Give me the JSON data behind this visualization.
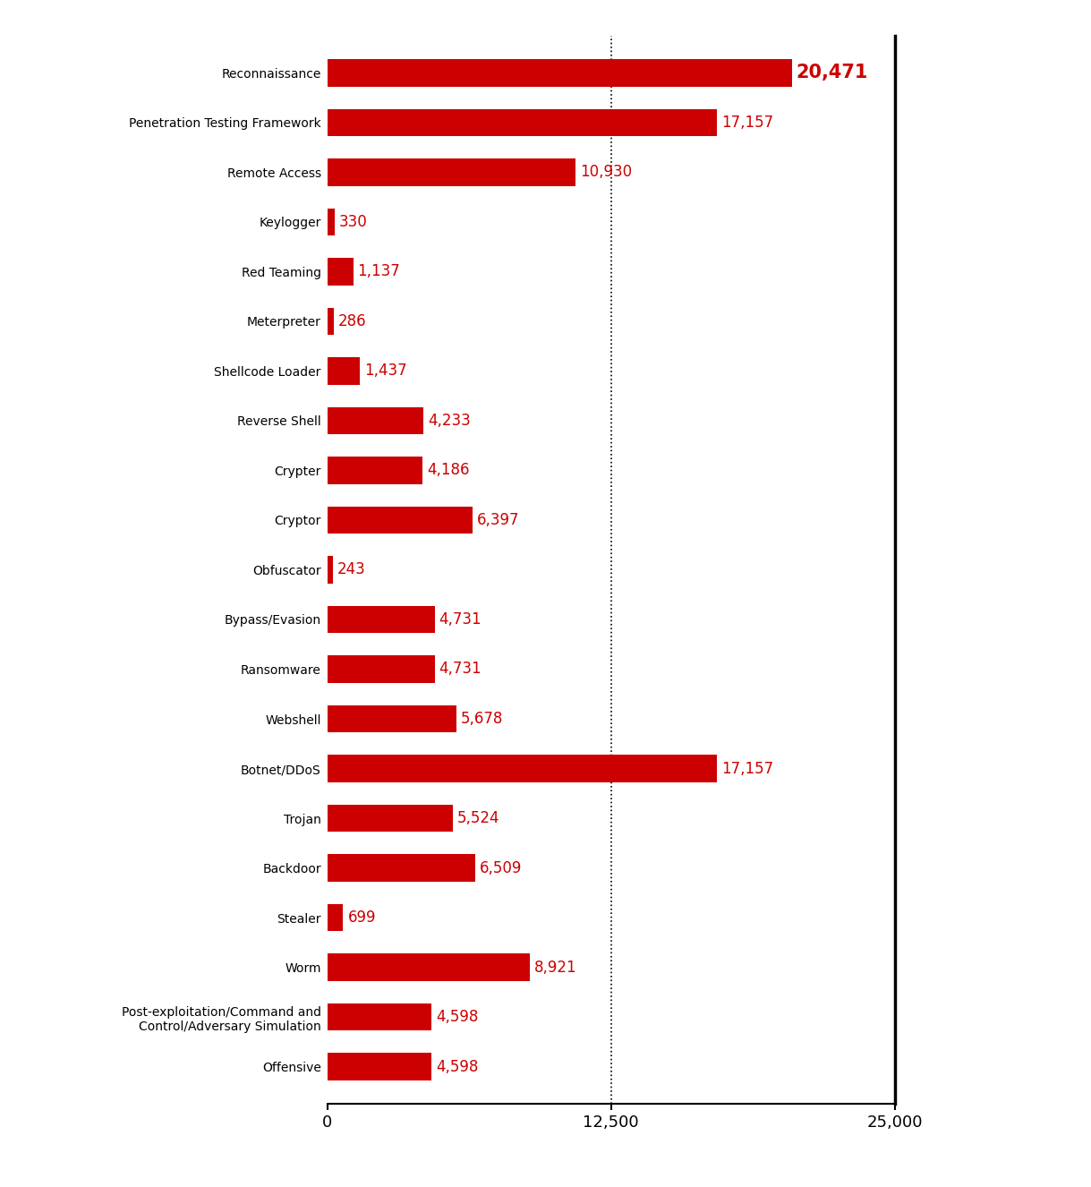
{
  "categories": [
    "Reconnaissance",
    "Penetration Testing Framework",
    "Remote Access",
    "Keylogger",
    "Red Teaming",
    "Meterpreter",
    "Shellcode Loader",
    "Reverse Shell",
    "Crypter",
    "Cryptor",
    "Obfuscator",
    "Bypass/Evasion",
    "Ransomware",
    "Webshell",
    "Botnet/DDoS",
    "Trojan",
    "Backdoor",
    "Stealer",
    "Worm",
    "Post-exploitation/Command and\nControl/Adversary Simulation",
    "Offensive"
  ],
  "values": [
    20471,
    17157,
    10930,
    330,
    1137,
    286,
    1437,
    4233,
    4186,
    6397,
    243,
    4731,
    4731,
    5678,
    17157,
    5524,
    6509,
    699,
    8921,
    4598,
    4598
  ],
  "bar_color": "#cc0000",
  "highlight_index": 0,
  "xlim": [
    0,
    25000
  ],
  "xticks": [
    0,
    12500,
    25000
  ],
  "xtick_labels": [
    "0",
    "12,500",
    "25,000"
  ],
  "dotted_line_x": 12500,
  "value_labels": [
    "20,471",
    "17,157",
    "10,930",
    "330",
    "1,137",
    "286",
    "1,437",
    "4,233",
    "4,186",
    "6,397",
    "243",
    "4,731",
    "4,731",
    "5,678",
    "17,157",
    "5,524",
    "6,509",
    "699",
    "8,921",
    "4,598",
    "4,598"
  ],
  "background_color": "#ffffff",
  "bar_height": 0.55,
  "label_fontsize": 13,
  "tick_fontsize": 13,
  "value_fontsize": 12,
  "value_fontsize_highlight": 15,
  "label_color": "#cc0000"
}
